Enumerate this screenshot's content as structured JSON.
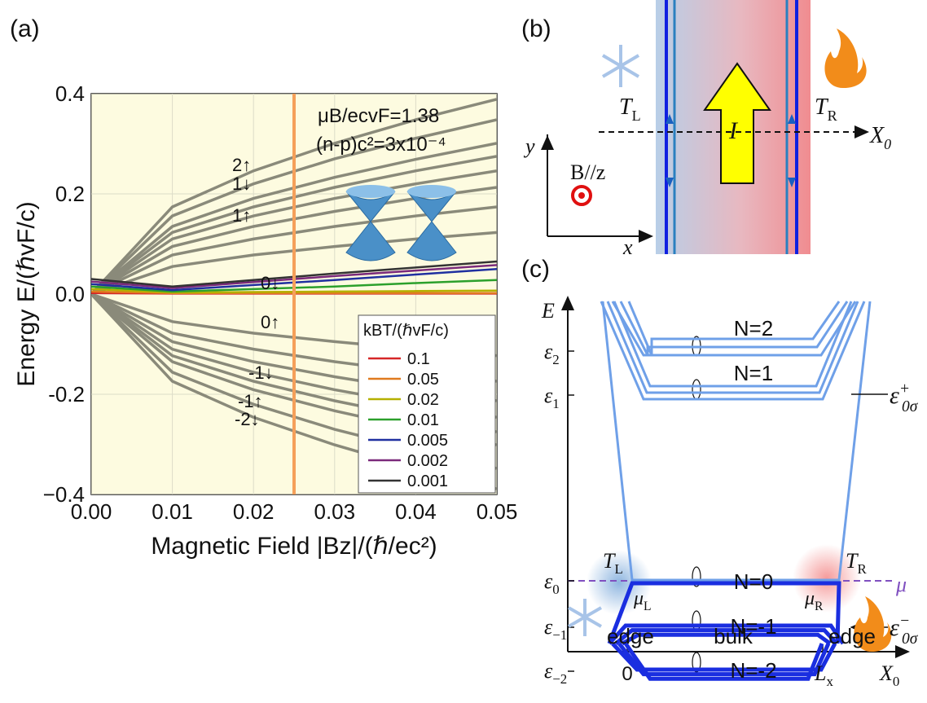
{
  "chart_data": {
    "type": "line",
    "panel_label": "(a)",
    "xlabel": "Magnetic Field |Bz|/(ℏ/ec²)",
    "ylabel": "Energy E/(ℏvF/c)",
    "annotations": [
      "μB/ecvF=1.38",
      "(n-p)c²=3x10⁻⁴"
    ],
    "level_labels": [
      "2↑",
      "1↓",
      "1↑",
      "0↓",
      "0↑",
      "-1↓",
      "-1↑",
      "-2↓"
    ],
    "legend_title": "kBT/(ℏvF/c)",
    "x": [
      0,
      0.01,
      0.02,
      0.03,
      0.04,
      0.05
    ],
    "xlim": [
      0,
      0.05
    ],
    "ylim": [
      -0.4,
      0.4
    ],
    "xticks": [
      {
        "value": 0,
        "label": "0.00"
      },
      {
        "value": 0.01,
        "label": "0.01"
      },
      {
        "value": 0.02,
        "label": "0.02"
      },
      {
        "value": 0.03,
        "label": "0.03"
      },
      {
        "value": 0.04,
        "label": "0.04"
      },
      {
        "value": 0.05,
        "label": "0.05"
      }
    ],
    "yticks": [
      {
        "value": -0.4,
        "label": "−0.4"
      },
      {
        "value": -0.2,
        "label": "-0.2"
      },
      {
        "value": 0,
        "label": "0.0"
      },
      0.2,
      0.4
    ],
    "grid": true,
    "marker_x": 0.025,
    "marker_color": "#f5a05a",
    "level_color": "#8a8a7a",
    "legend": "lower right",
    "levels": [
      {
        "values": [
          0,
          0.055,
          0.078,
          0.095,
          0.11,
          0.123
        ]
      },
      {
        "values": [
          0,
          0.078,
          0.11,
          0.135,
          0.156,
          0.174
        ]
      },
      {
        "values": [
          0,
          0.095,
          0.135,
          0.165,
          0.191,
          0.213
        ]
      },
      {
        "values": [
          0,
          0.11,
          0.156,
          0.191,
          0.22,
          0.246
        ]
      },
      {
        "values": [
          0,
          0.123,
          0.174,
          0.213,
          0.246,
          0.275
        ]
      },
      {
        "values": [
          0,
          0.135,
          0.191,
          0.233,
          0.269,
          0.301
        ]
      },
      {
        "values": [
          0,
          0.156,
          0.22,
          0.27,
          0.311,
          0.348
        ]
      },
      {
        "values": [
          0,
          0.174,
          0.246,
          0.301,
          0.348,
          0.389
        ]
      },
      {
        "values": [
          0,
          -0.055,
          -0.078,
          -0.095,
          -0.11,
          -0.123
        ]
      },
      {
        "values": [
          0,
          -0.078,
          -0.11,
          -0.135,
          -0.156,
          -0.174
        ]
      },
      {
        "values": [
          0,
          -0.095,
          -0.135,
          -0.165,
          -0.191,
          -0.213
        ]
      },
      {
        "values": [
          0,
          -0.11,
          -0.156,
          -0.191,
          -0.22,
          -0.246
        ]
      },
      {
        "values": [
          0,
          -0.123,
          -0.174,
          -0.213,
          -0.246,
          -0.275
        ]
      },
      {
        "values": [
          0,
          -0.135,
          -0.191,
          -0.233,
          -0.269,
          -0.301
        ]
      },
      {
        "values": [
          0,
          -0.156,
          -0.22,
          -0.27,
          -0.311,
          -0.348
        ]
      },
      {
        "values": [
          0,
          -0.174,
          -0.246,
          -0.301,
          -0.348,
          -0.389
        ]
      }
    ],
    "series": [
      {
        "name": "0.1",
        "color": "#d62728",
        "values": [
          0.002,
          0.001,
          0.001,
          0.001,
          0.001,
          0.001
        ]
      },
      {
        "name": "0.05",
        "color": "#e07a1f",
        "values": [
          0.005,
          0.002,
          0.002,
          0.002,
          0.002,
          0.002
        ]
      },
      {
        "name": "0.02",
        "color": "#b5b000",
        "values": [
          0.01,
          0.003,
          0.004,
          0.005,
          0.006,
          0.007
        ]
      },
      {
        "name": "0.01",
        "color": "#2ca02c",
        "values": [
          0.015,
          0.005,
          0.01,
          0.015,
          0.022,
          0.028
        ]
      },
      {
        "name": "0.005",
        "color": "#2030a0",
        "values": [
          0.02,
          0.008,
          0.018,
          0.028,
          0.039,
          0.05
        ]
      },
      {
        "name": "0.002",
        "color": "#7b2a7b",
        "values": [
          0.025,
          0.012,
          0.024,
          0.036,
          0.047,
          0.058
        ]
      },
      {
        "name": "0.001",
        "color": "#333333",
        "values": [
          0.03,
          0.015,
          0.028,
          0.041,
          0.053,
          0.065
        ]
      }
    ]
  },
  "panel_b": {
    "label": "(b)",
    "T_left": {
      "main": "T",
      "sub": "L"
    },
    "T_right": {
      "main": "T",
      "sub": "R"
    },
    "current": "I",
    "axis_x": "x",
    "axis_y": "y",
    "axis_X0": {
      "main": "X",
      "sub": "0"
    },
    "field": "B//z"
  },
  "panel_c": {
    "label": "(c)",
    "axis_E": "E",
    "axis_X0": {
      "main": "X",
      "sub": "0"
    },
    "levels_e": [
      {
        "main": "ε",
        "sub": "2"
      },
      {
        "main": "ε",
        "sub": "1"
      },
      {
        "main": "ε",
        "sub": "0"
      },
      {
        "main": "ε",
        "sub": "−1"
      },
      {
        "main": "ε",
        "sub": "−2"
      }
    ],
    "level_names": [
      "N=2",
      "N=1",
      "N=0",
      "N=-1",
      "N=-2"
    ],
    "regions": [
      "edge",
      "bulk",
      "edge"
    ],
    "x_ticks": [
      "0",
      {
        "main": "L",
        "sub": "x"
      }
    ],
    "T_left": {
      "main": "T",
      "sub": "L"
    },
    "T_right": {
      "main": "T",
      "sub": "R"
    },
    "mu_left": {
      "main": "μ",
      "sub": "L"
    },
    "mu_right": {
      "main": "μ",
      "sub": "R"
    },
    "mu": "μ",
    "eps_plus": {
      "main": "ε",
      "sub": "0σ",
      "sup": "+"
    },
    "eps_minus": {
      "main": "ε",
      "sub": "0σ",
      "sup": "−"
    }
  }
}
